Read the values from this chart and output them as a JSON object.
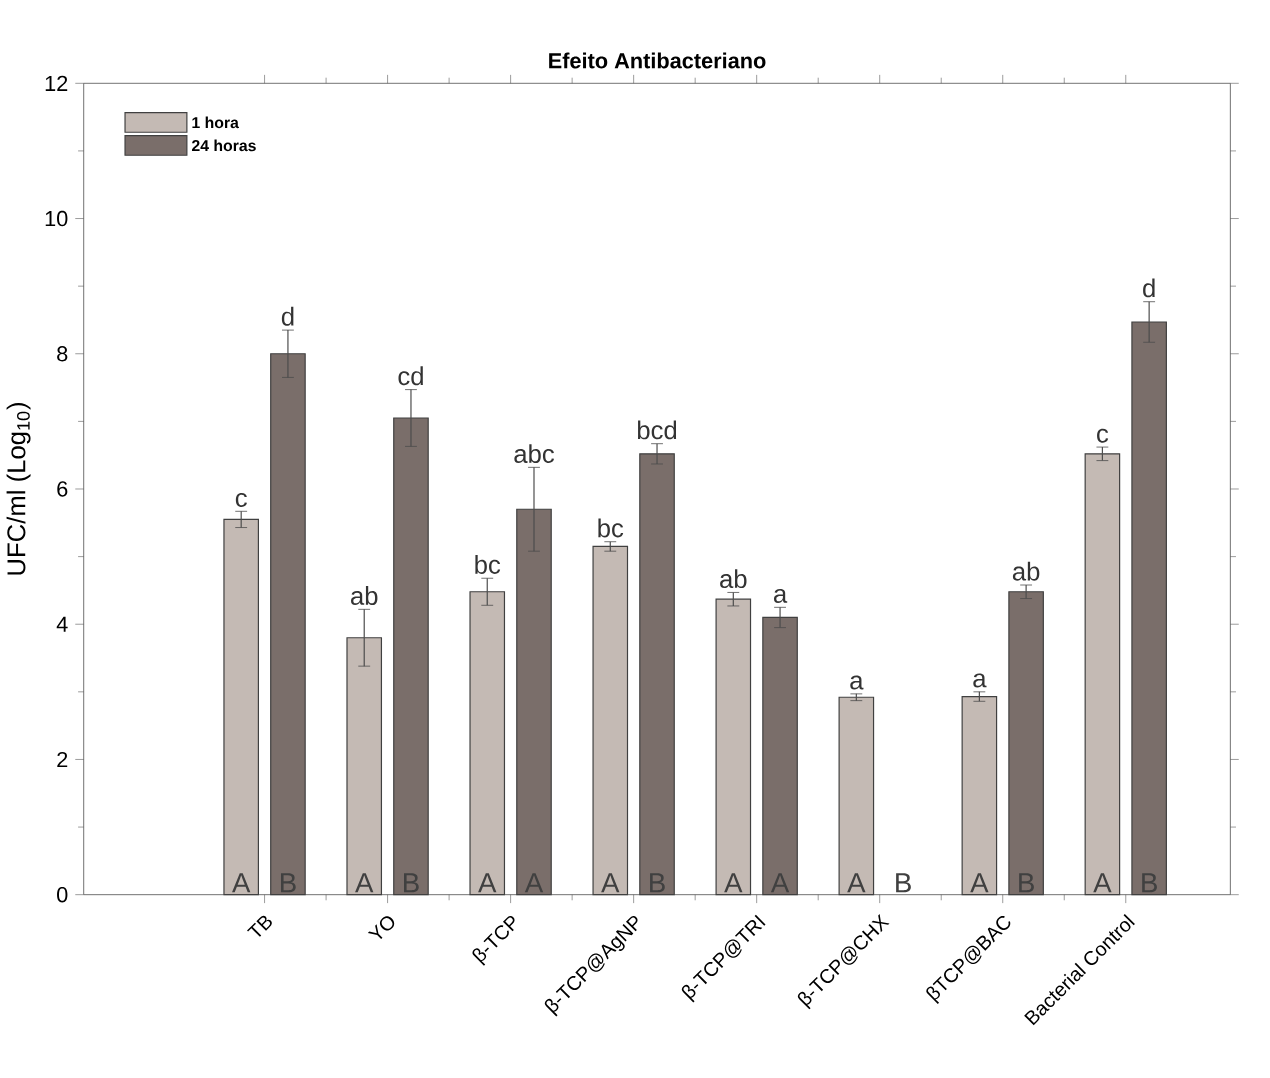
{
  "chart_data": {
    "type": "bar",
    "title": "Efeito Antibacteriano",
    "ylabel": "UFC/ml (Log$_{10}$)",
    "categories": [
      "TB",
      "YO",
      "β-TCP",
      "β-TCP@AgNP",
      "β-TCP@TRI",
      "β-TCP@CHX",
      "βTCP@BAC",
      "Bacterial Control"
    ],
    "series": [
      {
        "name": "1 hora",
        "color": "#c4bab4",
        "values": [
          5.55,
          3.8,
          4.48,
          5.15,
          4.37,
          2.92,
          2.93,
          6.52
        ],
        "errors": [
          0.12,
          0.42,
          0.2,
          0.07,
          0.1,
          0.05,
          0.07,
          0.1
        ],
        "value_labels": [
          "c",
          "ab",
          "bc",
          "bc",
          "ab",
          "a",
          "a",
          "c"
        ]
      },
      {
        "name": "24 horas",
        "color": "#7a6e6a",
        "values": [
          8.0,
          7.05,
          5.7,
          6.52,
          4.1,
          null,
          4.48,
          8.47
        ],
        "errors": [
          0.35,
          0.42,
          0.62,
          0.15,
          0.15,
          null,
          0.1,
          0.3
        ],
        "value_labels": [
          "d",
          "cd",
          "abc",
          "bcd",
          "a",
          null,
          "ab",
          "d"
        ]
      }
    ],
    "ylim": [
      0,
      12
    ],
    "yticks": [
      0,
      2,
      4,
      6,
      8,
      10,
      12
    ],
    "legend": "top left",
    "annotations": [
      {
        "text": "A",
        "x": "TB",
        "y": 0
      },
      {
        "text": "B",
        "x": "TB",
        "y": 0
      },
      {
        "text": "A",
        "x": "YO",
        "y": 0
      },
      {
        "text": "B",
        "x": "YO",
        "y": 0
      },
      {
        "text": "A",
        "x": "β-TCP",
        "y": 0
      },
      {
        "text": "A",
        "x": "β-TCP",
        "y": 0
      },
      {
        "text": "A",
        "x": "β-TCP@AgNP",
        "y": 0
      },
      {
        "text": "B",
        "x": "β-TCP@AgNP",
        "y": 0
      },
      {
        "text": "A",
        "x": "β-TCP@TRI",
        "y": 0
      },
      {
        "text": "A",
        "x": "β-TCP@TRI",
        "y": 0
      },
      {
        "text": "A",
        "x": "β-TCP@CHX",
        "y": 0
      },
      {
        "text": "B",
        "x": "β-TCP@CHX",
        "y": 0
      },
      {
        "text": "A",
        "x": "βTCP@BAC",
        "y": 0
      },
      {
        "text": "B",
        "x": "βTCP@BAC",
        "y": 0
      },
      {
        "text": "A",
        "x": "Bacterial Control",
        "y": 0
      },
      {
        "text": "B",
        "x": "Bacterial Control",
        "y": 0
      }
    ]
  }
}
